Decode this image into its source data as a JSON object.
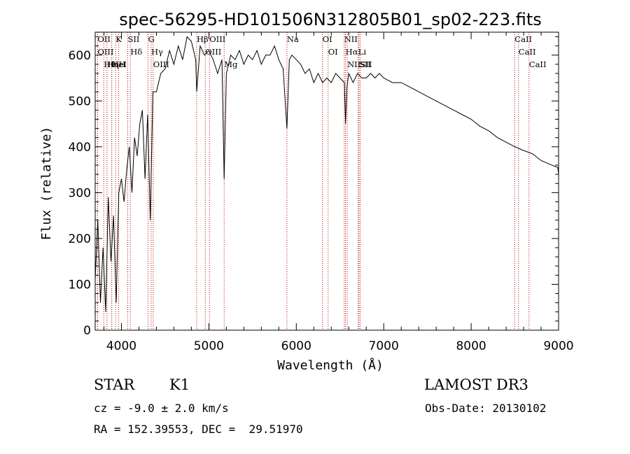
{
  "chart_data": {
    "type": "line",
    "title": "spec-56295-HD101506N312805B01_sp02-223.fits",
    "xlabel": "Wavelength (Å)",
    "ylabel": "Flux (relative)",
    "xlim": [
      3700,
      9000
    ],
    "ylim": [
      0,
      650
    ],
    "x_ticks": [
      4000,
      5000,
      6000,
      7000,
      8000,
      9000
    ],
    "y_ticks": [
      0,
      100,
      200,
      300,
      400,
      500,
      600
    ],
    "grid": false,
    "series": [
      {
        "name": "spectrum",
        "x": [
          3700,
          3730,
          3760,
          3790,
          3820,
          3850,
          3880,
          3910,
          3940,
          3970,
          4000,
          4030,
          4060,
          4090,
          4120,
          4150,
          4180,
          4210,
          4240,
          4270,
          4300,
          4330,
          4360,
          4400,
          4450,
          4500,
          4550,
          4600,
          4650,
          4700,
          4750,
          4800,
          4850,
          4861,
          4900,
          4950,
          5000,
          5050,
          5100,
          5150,
          5175,
          5200,
          5250,
          5300,
          5350,
          5400,
          5450,
          5500,
          5550,
          5600,
          5650,
          5700,
          5750,
          5800,
          5850,
          5893,
          5920,
          5950,
          6000,
          6050,
          6100,
          6150,
          6200,
          6250,
          6300,
          6350,
          6400,
          6450,
          6500,
          6550,
          6563,
          6580,
          6600,
          6650,
          6700,
          6750,
          6800,
          6850,
          6900,
          6950,
          7000,
          7100,
          7200,
          7300,
          7400,
          7500,
          7600,
          7700,
          7800,
          7900,
          8000,
          8100,
          8200,
          8300,
          8400,
          8500,
          8600,
          8700,
          8800,
          8900,
          8950,
          8990,
          9000
        ],
        "y": [
          110,
          240,
          60,
          180,
          40,
          290,
          150,
          250,
          60,
          300,
          330,
          280,
          350,
          400,
          300,
          420,
          380,
          450,
          480,
          330,
          470,
          240,
          520,
          520,
          560,
          570,
          610,
          580,
          620,
          590,
          640,
          630,
          590,
          520,
          620,
          600,
          610,
          590,
          560,
          590,
          330,
          560,
          600,
          590,
          610,
          580,
          600,
          590,
          610,
          580,
          600,
          600,
          620,
          590,
          570,
          440,
          590,
          600,
          590,
          580,
          560,
          570,
          540,
          560,
          540,
          550,
          540,
          560,
          550,
          540,
          450,
          530,
          560,
          540,
          560,
          550,
          550,
          560,
          550,
          560,
          550,
          540,
          540,
          530,
          520,
          510,
          500,
          490,
          480,
          470,
          460,
          445,
          435,
          420,
          410,
          400,
          392,
          385,
          370,
          362,
          358,
          355,
          340
        ]
      }
    ],
    "annotations": [
      {
        "label": "Hθ",
        "x": 3798
      },
      {
        "label": "OII",
        "x": 3727
      },
      {
        "label": "OIII",
        "x": 3727
      },
      {
        "label": "Hη",
        "x": 3835
      },
      {
        "label": "K",
        "x": 3934
      },
      {
        "label": "HeI",
        "x": 3889
      },
      {
        "label": "Hε",
        "x": 3889
      },
      {
        "label": "H",
        "x": 3969
      },
      {
        "label": "Hδ",
        "x": 4102
      },
      {
        "label": "SII",
        "x": 4072
      },
      {
        "label": "OIII",
        "x": 4363
      },
      {
        "label": "Hγ",
        "x": 4340
      },
      {
        "label": "G",
        "x": 4305
      },
      {
        "label": "OIII",
        "x": 4959
      },
      {
        "label": "OIII",
        "x": 5007
      },
      {
        "label": "Hβ",
        "x": 4861
      },
      {
        "label": "Mg",
        "x": 5175
      },
      {
        "label": "Na",
        "x": 5893
      },
      {
        "label": "OI",
        "x": 6300
      },
      {
        "label": "OI",
        "x": 6364
      },
      {
        "label": "Hα",
        "x": 6563
      },
      {
        "label": "NII",
        "x": 6548
      },
      {
        "label": "NII",
        "x": 6583
      },
      {
        "label": "SII",
        "x": 6717
      },
      {
        "label": "SII",
        "x": 6731
      },
      {
        "label": "Li",
        "x": 6708
      },
      {
        "label": "CaII",
        "x": 8542
      },
      {
        "label": "CaII",
        "x": 8498
      },
      {
        "label": "CaII",
        "x": 8662
      }
    ]
  },
  "info": {
    "object_class": "STAR",
    "subclass": "K1",
    "survey": "LAMOST DR3",
    "cz": "cz = -9.0 ± 2.0 km/s",
    "obs_date": "Obs-Date: 20130102",
    "coords": "RA = 152.39553, DEC =  29.51970"
  }
}
